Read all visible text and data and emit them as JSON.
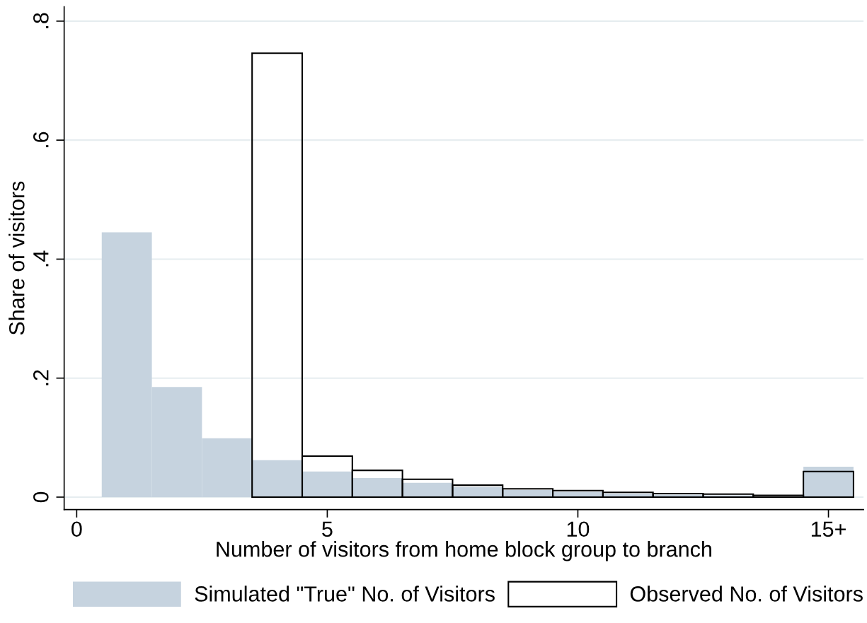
{
  "chart_data": {
    "type": "histogram",
    "xlabel": "Number of visitors from home block group to branch",
    "ylabel": "Share of visitors",
    "bins": [
      0.5,
      1.5,
      2.5,
      3.5,
      4.5,
      5.5,
      6.5,
      7.5,
      8.5,
      9.5,
      10.5,
      11.5,
      12.5,
      13.5,
      14.5,
      15.5
    ],
    "series": [
      {
        "name": "Simulated \"True\" No. of Visitors",
        "color": "#c6d3df",
        "values": [
          0.445,
          0.185,
          0.099,
          0.062,
          0.043,
          0.032,
          0.024,
          0.017,
          0.012,
          0.009,
          0.006,
          0.004,
          0.003,
          0.001,
          0.051
        ]
      },
      {
        "name": "Observed No. of Visitors",
        "color": "#000000",
        "values": [
          null,
          null,
          null,
          0.746,
          0.069,
          0.045,
          0.03,
          0.02,
          0.014,
          0.011,
          0.008,
          0.006,
          0.005,
          0.003,
          0.043
        ]
      }
    ],
    "xlim": [
      -0.25,
      15.7
    ],
    "xticks": [
      0,
      5,
      10,
      {
        "value": 15,
        "label": "15+"
      }
    ],
    "ylim": [
      -0.021,
      0.824
    ],
    "yticks": [
      {
        "value": 0,
        "label": "0"
      },
      {
        "value": 0.2,
        "label": ".2"
      },
      {
        "value": 0.4,
        "label": ".4"
      },
      {
        "value": 0.6,
        "label": ".6"
      },
      {
        "value": 0.8,
        "label": ".8"
      }
    ],
    "grid": "y",
    "legend": "bottom"
  }
}
